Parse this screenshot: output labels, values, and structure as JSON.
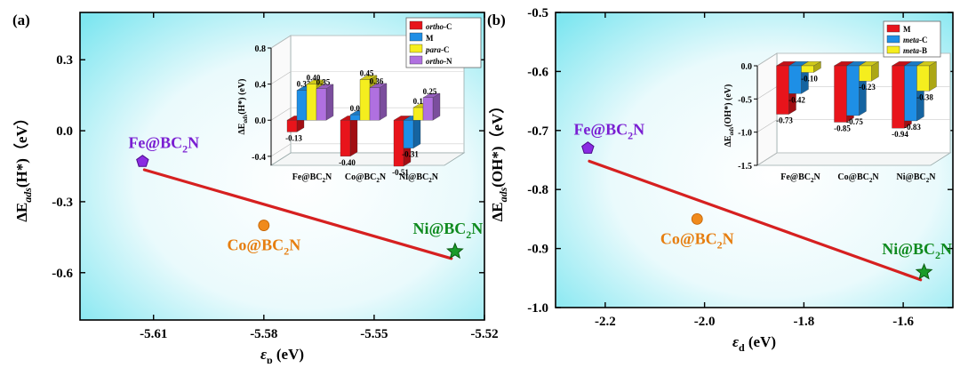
{
  "panel_labels": [
    "(a)",
    "(b)"
  ],
  "chart_data": [
    {
      "type": "scatter",
      "panel": "(a)",
      "xlabel": "εp (eV)",
      "xlabel_symbol": "ε",
      "xlabel_sub": "p",
      "xlabel_unit": " (eV)",
      "ylabel": "ΔEads(H*)（eV）",
      "ylabel_main": "ΔE",
      "ylabel_sub": "ads",
      "ylabel_rest": "(H*)（eV）",
      "xlim": [
        -5.63,
        -5.52
      ],
      "ylim": [
        -0.8,
        0.5
      ],
      "xticks": [
        -5.61,
        -5.58,
        -5.55,
        -5.52
      ],
      "xtick_labels": [
        "-5.61",
        "-5.58",
        "-5.55",
        "-5.52"
      ],
      "yticks": [
        0.3,
        0.0,
        -0.3,
        -0.6
      ],
      "ytick_labels": [
        "0.3",
        "0.0",
        "-0.3",
        "-0.6"
      ],
      "points": [
        {
          "label": "Fe@BC2N",
          "label_main": "Fe@BC",
          "label_sub": "2",
          "label_end": "N",
          "x": -5.613,
          "y": -0.13,
          "marker": "pentagon",
          "color": "#8a2be2",
          "label_color": "#7a1fd2"
        },
        {
          "label": "Co@BC2N",
          "label_main": "Co@BC",
          "label_sub": "2",
          "label_end": "N",
          "x": -5.58,
          "y": -0.4,
          "marker": "circle",
          "color": "#f08a1c",
          "label_color": "#e67e10"
        },
        {
          "label": "Ni@BC2N",
          "label_main": "Ni@BC",
          "label_sub": "2",
          "label_end": "N",
          "x": -5.528,
          "y": -0.51,
          "marker": "star",
          "color": "#1a9c2a",
          "label_color": "#0f8a1f"
        }
      ],
      "fit_line": {
        "x": [
          -5.6125,
          -5.529
        ],
        "y": [
          -0.165,
          -0.54
        ],
        "color": "#d62020"
      },
      "inset": {
        "type": "bar",
        "ylabel": "ΔEads(H*) (eV)",
        "ylabel_main": "ΔE",
        "ylabel_sub": "ads",
        "ylabel_rest": "(H*) (eV)",
        "ylim": [
          -0.5,
          0.8
        ],
        "yticks": [
          0.8,
          0.4,
          0.0,
          -0.4
        ],
        "ytick_labels": [
          "0.8",
          "0.4",
          "0.0",
          "-0.4"
        ],
        "categories": [
          "Fe@BC2N",
          "Co@BC2N",
          "Ni@BC2N"
        ],
        "category_parts": [
          {
            "main": "Fe@BC",
            "sub": "2",
            "end": "N"
          },
          {
            "main": "Co@BC",
            "sub": "2",
            "end": "N"
          },
          {
            "main": "Ni@BC",
            "sub": "2",
            "end": "N"
          }
        ],
        "series": [
          {
            "name": "ortho-C",
            "italic_part": "ortho",
            "rest": "-C",
            "color": "#e8141b",
            "values": [
              -0.13,
              -0.4,
              -0.51
            ],
            "labels": [
              "-0.13",
              "-0.40",
              "-0.51"
            ]
          },
          {
            "name": "M",
            "italic_part": "",
            "rest": "M",
            "color": "#1e8fe6",
            "values": [
              0.33,
              0.06,
              -0.31
            ],
            "labels": [
              "0.33",
              "0.06",
              "-0.31"
            ]
          },
          {
            "name": "para-C",
            "italic_part": "para",
            "rest": "-C",
            "color": "#f5ee1e",
            "values": [
              0.4,
              0.45,
              0.14
            ],
            "labels": [
              "0.40",
              "0.45",
              "0.14"
            ]
          },
          {
            "name": "ortho-N",
            "italic_part": "ortho",
            "rest": "-N",
            "color": "#b070e0",
            "values": [
              0.35,
              0.36,
              0.25
            ],
            "labels": [
              "0.35",
              "0.36",
              "0.25"
            ]
          }
        ]
      }
    },
    {
      "type": "scatter",
      "panel": "(b)",
      "xlabel": "εd (eV)",
      "xlabel_symbol": "ε",
      "xlabel_sub": "d",
      "xlabel_unit": " (eV)",
      "ylabel": "ΔEads(OH*)（eV）",
      "ylabel_main": "ΔE",
      "ylabel_sub": "ads",
      "ylabel_rest": "(OH*)（eV）",
      "xlim": [
        -2.3,
        -1.5
      ],
      "ylim": [
        -1.0,
        -0.5
      ],
      "xticks": [
        -2.2,
        -2.0,
        -1.8,
        -1.6
      ],
      "xtick_labels": [
        "-2.2",
        "-2.0",
        "-1.8",
        "-1.6"
      ],
      "yticks": [
        -0.5,
        -0.6,
        -0.7,
        -0.8,
        -0.9,
        -1.0
      ],
      "ytick_labels": [
        "-0.5",
        "-0.6",
        "-0.7",
        "-0.8",
        "-0.9",
        "-1.0"
      ],
      "points": [
        {
          "label": "Fe@BC2N",
          "label_main": "Fe@BC",
          "label_sub": "2",
          "label_end": "N",
          "x": -2.235,
          "y": -0.73,
          "marker": "pentagon",
          "color": "#8a2be2",
          "label_color": "#7a1fd2"
        },
        {
          "label": "Co@BC2N",
          "label_main": "Co@BC",
          "label_sub": "2",
          "label_end": "N",
          "x": -2.015,
          "y": -0.85,
          "marker": "circle",
          "color": "#f08a1c",
          "label_color": "#e67e10"
        },
        {
          "label": "Ni@BC2N",
          "label_main": "Ni@BC",
          "label_sub": "2",
          "label_end": "N",
          "x": -1.558,
          "y": -0.94,
          "marker": "star",
          "color": "#1a9c2a",
          "label_color": "#0f8a1f"
        }
      ],
      "fit_line": {
        "x": [
          -2.232,
          -1.565
        ],
        "y": [
          -0.752,
          -0.953
        ],
        "color": "#d62020"
      },
      "inset": {
        "type": "bar",
        "ylabel": "ΔEads(OH*) (eV)",
        "ylabel_main": "ΔE",
        "ylabel_sub": "ads",
        "ylabel_rest": "(OH*) (eV)",
        "ylim": [
          -1.5,
          0.0
        ],
        "yticks": [
          0.0,
          -0.5,
          -1.0,
          -1.5
        ],
        "ytick_labels": [
          "0.0",
          "-0.5",
          "-1.0",
          "-1.5"
        ],
        "categories": [
          "Fe@BC2N",
          "Co@BC2N",
          "Ni@BC2N"
        ],
        "category_parts": [
          {
            "main": "Fe@BC",
            "sub": "2",
            "end": "N"
          },
          {
            "main": "Co@BC",
            "sub": "2",
            "end": "N"
          },
          {
            "main": "Ni@BC",
            "sub": "2",
            "end": "N"
          }
        ],
        "series": [
          {
            "name": "M",
            "italic_part": "",
            "rest": "M",
            "color": "#e8141b",
            "values": [
              -0.73,
              -0.85,
              -0.94
            ],
            "labels": [
              "-0.73",
              "-0.85",
              "-0.94"
            ]
          },
          {
            "name": "meta-C",
            "italic_part": "meta",
            "rest": "-C",
            "color": "#1e8fe6",
            "values": [
              -0.42,
              -0.75,
              -0.83
            ],
            "labels": [
              "-0.42",
              "-0.75",
              "-0.83"
            ]
          },
          {
            "name": "meta-B",
            "italic_part": "meta",
            "rest": "-B",
            "color": "#f5ee1e",
            "values": [
              -0.1,
              -0.23,
              -0.38
            ],
            "labels": [
              "-0.10",
              "-0.23",
              "-0.38"
            ]
          }
        ]
      }
    }
  ]
}
